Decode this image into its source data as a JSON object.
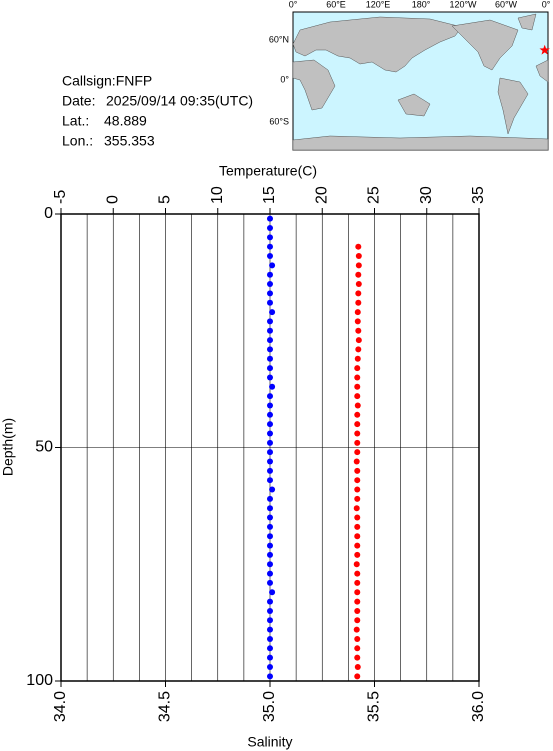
{
  "info": {
    "callsign": "Callsign:FNFP",
    "date_label": "Date:",
    "date": "2025/09/14 09:35(UTC)",
    "lat_label": "Lat.:",
    "lat": 48.889,
    "lon_label": "Lon.:",
    "lon": 355.353
  },
  "map": {
    "lon_labels": [
      "0°",
      "60°E",
      "120°E",
      "180°",
      "120°W",
      "60°W",
      "0°"
    ],
    "lat_labels": [
      "60°N",
      "0°",
      "60°S"
    ],
    "marker_color": "#ff0000"
  },
  "chart_data": {
    "type": "scatter",
    "x2label": "Temperature(C)",
    "xlabel": "Salinity",
    "ylabel": "Depth(m)",
    "x2lim": [
      -5,
      35
    ],
    "x2ticks": [
      -5,
      0,
      5,
      10,
      15,
      20,
      25,
      30,
      35
    ],
    "xlim": [
      34,
      36
    ],
    "xticks": [
      {
        "value": 34,
        "label": "34.0"
      },
      34.5,
      {
        "value": 35,
        "label": "35.0"
      },
      35.5,
      {
        "value": 36,
        "label": "36.0"
      }
    ],
    "xgrid": [
      34.125,
      34.25,
      34.375,
      34.5,
      34.625,
      34.75,
      34.875,
      35,
      35.125,
      35.25,
      35.375,
      35.5,
      35.625,
      35.75,
      35.875
    ],
    "ylim": [
      0,
      100
    ],
    "y_inverted": true,
    "yticks": [
      0,
      50,
      100
    ],
    "ygrid": [
      50
    ],
    "series": [
      {
        "color": "#0000ff",
        "axis": "x",
        "y": [
          1,
          3,
          5,
          7,
          9,
          11,
          13,
          15,
          17,
          19,
          21,
          23,
          25,
          27,
          29,
          31,
          33,
          35,
          37,
          39,
          41,
          43,
          45,
          47,
          49,
          51,
          53,
          55,
          57,
          59,
          61,
          63,
          65,
          67,
          69,
          71,
          73,
          75,
          77,
          79,
          81,
          83,
          85,
          87,
          89,
          91,
          93,
          95,
          97,
          99
        ],
        "x": [
          35.0,
          35.0,
          35.0,
          35.0,
          35.0,
          35.01,
          35.0,
          35.0,
          35.0,
          35.0,
          35.01,
          35.0,
          35.0,
          35.0,
          35.0,
          35.0,
          35.0,
          35.0,
          35.01,
          35.0,
          35.0,
          35.0,
          35.0,
          35.0,
          35.0,
          35.0,
          35.0,
          35.0,
          35.0,
          35.01,
          35.0,
          35.0,
          35.0,
          35.0,
          35.0,
          35.0,
          35.0,
          35.0,
          35.0,
          35.0,
          35.01,
          35.0,
          35.0,
          35.0,
          35.0,
          35.0,
          35.0,
          35.0,
          35.0,
          35.0
        ]
      },
      {
        "color": "#ff0000",
        "axis": "x2",
        "y": [
          7,
          9,
          11,
          13,
          15,
          17,
          19,
          21,
          23,
          25,
          27,
          29,
          31,
          33,
          35,
          37,
          39,
          41,
          43,
          45,
          47,
          49,
          51,
          53,
          55,
          57,
          59,
          61,
          63,
          65,
          67,
          69,
          71,
          73,
          75,
          77,
          79,
          81,
          83,
          85,
          87,
          89,
          91,
          93,
          95,
          97,
          99
        ],
        "x": [
          23.45,
          23.5,
          23.5,
          23.45,
          23.5,
          23.45,
          23.45,
          23.4,
          23.4,
          23.45,
          23.5,
          23.45,
          23.4,
          23.35,
          23.35,
          23.35,
          23.35,
          23.4,
          23.35,
          23.35,
          23.35,
          23.35,
          23.35,
          23.3,
          23.35,
          23.35,
          23.35,
          23.35,
          23.3,
          23.35,
          23.35,
          23.35,
          23.35,
          23.35,
          23.3,
          23.35,
          23.35,
          23.35,
          23.35,
          23.35,
          23.35,
          23.3,
          23.35,
          23.35,
          23.35,
          23.4,
          23.35
        ]
      }
    ]
  }
}
